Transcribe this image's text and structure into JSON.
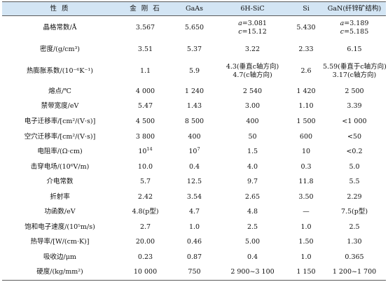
{
  "headers": [
    "性    质",
    "金 刚 石",
    "GaAs",
    "6H-SiC",
    "Si",
    "GaN(纤锌矿结构)"
  ],
  "rows": [
    {
      "property": "晶格常数/Å",
      "diamond": "3.567",
      "gaas": "5.650",
      "sic": {
        "a": "=3.081",
        "c": "=15.12"
      },
      "si": "5.430",
      "gan": {
        "a": "=3.189",
        "c": "=5.185"
      }
    },
    {
      "property": "密度/(g/cm³)",
      "diamond": "3.51",
      "gaas": "5.37",
      "sic": "3.22",
      "si": "2.33",
      "gan": "6.15"
    },
    {
      "property": "热膨胀系数/(10⁻⁶K⁻¹)",
      "diamond": "1.1",
      "gaas": "5.9",
      "sic": {
        "l1": "4.3(垂直c轴方向)",
        "l2": "4.7(c轴方向)"
      },
      "si": "2.6",
      "gan": {
        "l1": "5.59(垂直于c轴方向)",
        "l2": "3.17(c轴方向)"
      }
    },
    {
      "property": "熔点/℃",
      "diamond": "4 000",
      "gaas": "1 240",
      "sic": "2 540",
      "si": "1 420",
      "gan": "2 500"
    },
    {
      "property": "禁带宽度/eV",
      "diamond": "5.47",
      "gaas": "1.43",
      "sic": "3.00",
      "si": "1.10",
      "gan": "3.39"
    },
    {
      "property": "电子迁移率/[cm²/(V·s)]",
      "diamond": "4 500",
      "gaas": "8 500",
      "sic": "400",
      "si": "1 500",
      "gan": "<1 000"
    },
    {
      "property": "空穴迁移率/[cm²/(V·s)]",
      "diamond": "3 800",
      "gaas": "400",
      "sic": "50",
      "si": "600",
      "gan": "<50"
    },
    {
      "property": "电阻率/(Ω·cm)",
      "diamond": {
        "base": "10",
        "exp": "14"
      },
      "gaas": {
        "base": "10",
        "exp": "7"
      },
      "sic": "1.5",
      "si": "10",
      "gan": "<0.2"
    },
    {
      "property": "击穿电场/(10⁶V/m)",
      "diamond": "10.0",
      "gaas": "0.4",
      "sic": "4.0",
      "si": "0.3",
      "gan": "5.0"
    },
    {
      "property": "介电常数",
      "diamond": "5.7",
      "gaas": "12.5",
      "sic": "9.7",
      "si": "11.8",
      "gan": "5.5"
    },
    {
      "property": "折射率",
      "diamond": "2.42",
      "gaas": "3.54",
      "sic": "2.65",
      "si": "3.50",
      "gan": "2.29"
    },
    {
      "property": "功函数/eV",
      "diamond": "4.8(p型)",
      "gaas": "4.7",
      "sic": "4.8",
      "si": "—",
      "gan": "7.5(p型)"
    },
    {
      "property": "饱和电子速度/(10⁵m/s)",
      "diamond": "2.7",
      "gaas": "1.0",
      "sic": "2.5",
      "si": "1.0",
      "gan": "2.5"
    },
    {
      "property": "热导率/[W/(cm·K)]",
      "diamond": "20.00",
      "gaas": "0.46",
      "sic": "5.00",
      "si": "1.50",
      "gan": "1.30"
    },
    {
      "property": "吸收边/μm",
      "diamond": "0.23",
      "gaas": "0.87",
      "sic": "0.4",
      "si": "1.0",
      "gan": "0.365"
    },
    {
      "property": "硬度/(kg/mm²)",
      "diamond": "10 000",
      "gaas": "750",
      "sic": "2 900~3 100",
      "si": "1 150",
      "gan": "1 200~1 700"
    }
  ],
  "colors": {
    "header_bg": "#d3e5f4",
    "rule": "#5a5a5a",
    "text": "#111111"
  }
}
